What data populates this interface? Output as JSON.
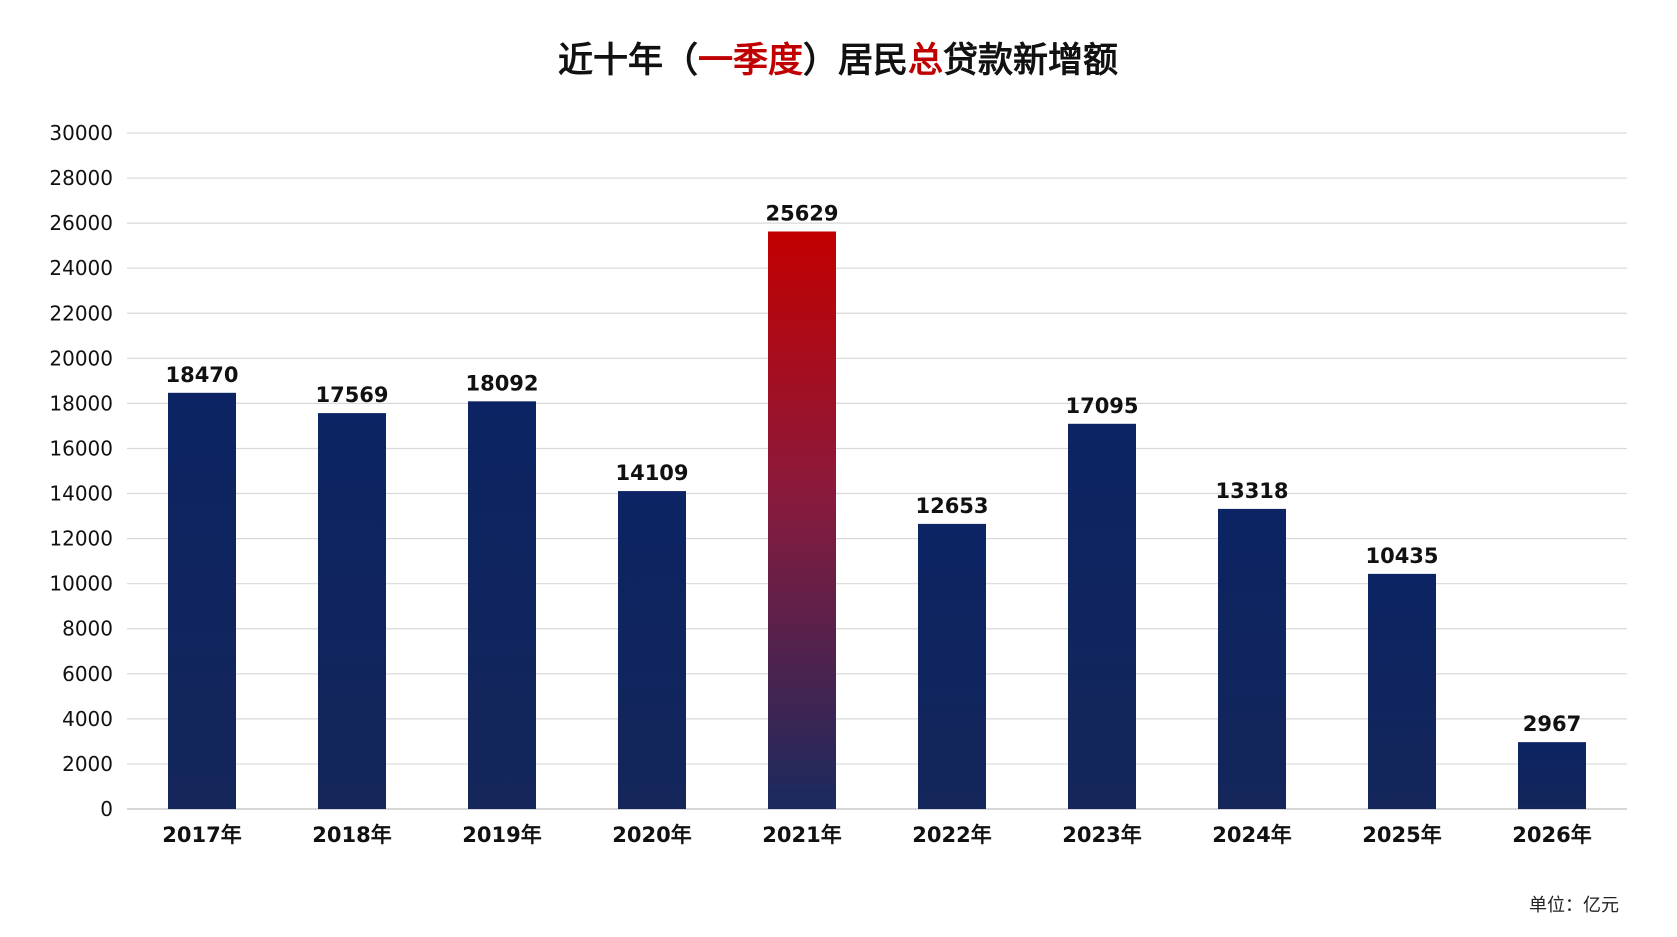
{
  "chart_data": {
    "type": "bar",
    "title": "近十年（一季度）居民总贷款新增额",
    "title_segments": [
      {
        "text": "近十年（",
        "color": "#111111"
      },
      {
        "text": "一季度",
        "color": "#c00000"
      },
      {
        "text": "）居民",
        "color": "#111111"
      },
      {
        "text": "总",
        "color": "#c00000"
      },
      {
        "text": "贷款新增额",
        "color": "#111111"
      }
    ],
    "categories": [
      "2017年",
      "2018年",
      "2019年",
      "2020年",
      "2021年",
      "2022年",
      "2023年",
      "2024年",
      "2025年",
      "2026年"
    ],
    "values": [
      18470,
      17569,
      18092,
      14109,
      25629,
      12653,
      17095,
      13318,
      10435,
      2967
    ],
    "highlight_category": "2021年",
    "xlabel": "",
    "ylabel": "",
    "ylim": [
      0,
      30000
    ],
    "yticks": [
      0,
      2000,
      4000,
      6000,
      8000,
      10000,
      12000,
      14000,
      16000,
      18000,
      20000,
      22000,
      24000,
      26000,
      28000,
      30000
    ],
    "grid": true,
    "unit_note": "单位：亿元",
    "colors": {
      "bar_top": "#0c2463",
      "bar_bottom": "#14265a",
      "highlight_top": "#c20000",
      "highlight_bottom": "#1a2a5e",
      "grid": "#d9d9d9",
      "axis": "#bfbfbf"
    }
  }
}
